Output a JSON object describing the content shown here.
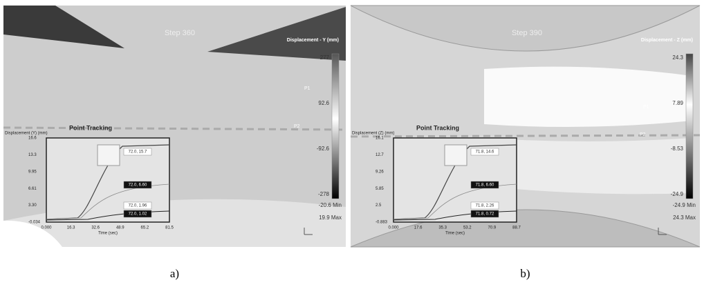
{
  "panels": [
    {
      "caption": "a)",
      "step": "Step 360",
      "legend_title": "Displacement - Y (mm)",
      "scale_labels": [
        "277",
        "92.6",
        "-92.6",
        "-278"
      ],
      "min_label": "-20.6 Min",
      "max_label": "19.9 Max",
      "point_labels": [
        "P1",
        "P2"
      ],
      "plot": {
        "title": "Point Tracking",
        "y_label": "Displacement (Y) (mm)",
        "yticks": [
          "16.6",
          "13.3",
          "9.95",
          "6.61",
          "3.30",
          "-0.034"
        ],
        "xticks": [
          "0.000",
          "16.3",
          "32.6",
          "48.9",
          "65.2",
          "81.5"
        ],
        "x_label": "Time (sec)",
        "readouts": [
          "72.0, 15.7",
          "72.0, 6.60",
          "72.0, 1.96",
          "72.0, 1.02"
        ]
      }
    },
    {
      "caption": "b)",
      "step": "Step 390",
      "legend_title": "Displacement - Z (mm)",
      "scale_labels": [
        "24.3",
        "7.89",
        "-8.53",
        "-24.9"
      ],
      "min_label": "-24.9 Min",
      "max_label": "24.3 Max",
      "point_labels": [
        "P1",
        "P2"
      ],
      "plot": {
        "title": "Point Tracking",
        "y_label": "Displacement (Z) (mm)",
        "yticks": [
          "16.1",
          "12.7",
          "9.26",
          "5.85",
          "2.5",
          "-0.883"
        ],
        "xticks": [
          "0.000",
          "17.6",
          "35.3",
          "53.2",
          "70.9",
          "88.7"
        ],
        "x_label": "Time (sec)",
        "readouts": [
          "71.8, 14.6",
          "71.8, 6.60",
          "71.8, 2.26",
          "71.8, 0.72"
        ]
      }
    }
  ]
}
